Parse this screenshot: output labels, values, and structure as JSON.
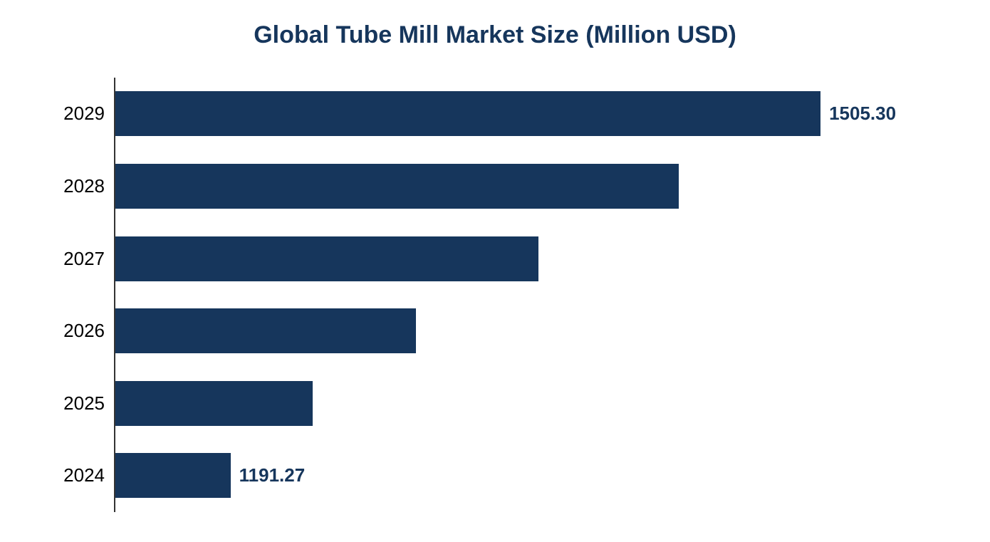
{
  "chart": {
    "type": "bar_horizontal",
    "title": "Global Tube Mill Market Size (Million USD)",
    "title_color": "#16365c",
    "title_fontsize": 34,
    "title_fontweight": "bold",
    "background_color": "#ffffff",
    "bar_color": "#16365c",
    "axis_color": "#333333",
    "label_color": "#000000",
    "label_fontsize": 26,
    "value_label_color": "#16365c",
    "value_label_fontsize": 26,
    "value_label_fontweight": "bold",
    "bar_height_ratio": 0.62,
    "xlim": [
      1130,
      1550
    ],
    "data": [
      {
        "year": "2029",
        "value": 1505.3,
        "show_value": true,
        "value_text": "1505.30"
      },
      {
        "year": "2028",
        "value": 1430,
        "show_value": false
      },
      {
        "year": "2027",
        "value": 1355,
        "show_value": false
      },
      {
        "year": "2026",
        "value": 1290,
        "show_value": false
      },
      {
        "year": "2025",
        "value": 1235,
        "show_value": false
      },
      {
        "year": "2024",
        "value": 1191.27,
        "show_value": true,
        "value_text": "1191.27"
      }
    ]
  }
}
